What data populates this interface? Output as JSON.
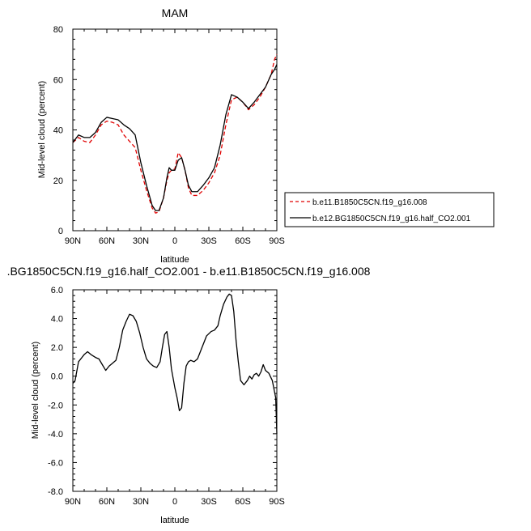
{
  "chart_data": [
    {
      "type": "line",
      "title": "MAM",
      "xlabel": "latitude",
      "ylabel": "Mid-level cloud (percent)",
      "xlim": [
        -90,
        90
      ],
      "ylim": [
        0,
        80
      ],
      "x_tick_values": [
        -90,
        -60,
        -30,
        0,
        30,
        60,
        90
      ],
      "x_tick_labels": [
        "90N",
        "60N",
        "30N",
        "0",
        "30S",
        "60S",
        "90S"
      ],
      "y_tick_values": [
        0,
        20,
        40,
        60,
        80
      ],
      "y_tick_labels": [
        "0",
        "20",
        "40",
        "60",
        "80"
      ],
      "legend_position": "right",
      "grid": false,
      "series": [
        {
          "name": "b.e11.B1850C5CN.f19_g16.008",
          "color": "#e00000",
          "dash": "dashed",
          "x": [
            -90,
            -85,
            -80,
            -75,
            -70,
            -65,
            -60,
            -55,
            -50,
            -45,
            -40,
            -35,
            -30,
            -25,
            -20,
            -17,
            -14,
            -10,
            -7,
            -5,
            -3,
            0,
            3,
            6,
            9,
            12,
            15,
            20,
            25,
            30,
            35,
            40,
            45,
            50,
            55,
            60,
            65,
            70,
            75,
            80,
            85,
            88,
            90
          ],
          "y": [
            35,
            37,
            35.5,
            35,
            38,
            42,
            43.5,
            43,
            42,
            38,
            35.5,
            33,
            24,
            16,
            9,
            7,
            7.5,
            13,
            20,
            23,
            24,
            24.5,
            31,
            29,
            24,
            17,
            14,
            14,
            16,
            19,
            23,
            30,
            42,
            52,
            53,
            51,
            48,
            50,
            53,
            57,
            62,
            68,
            70
          ]
        },
        {
          "name": "b.e12.BG1850C5CN.f19_g16.half_CO2.001",
          "color": "#000000",
          "dash": "solid",
          "x": [
            -90,
            -85,
            -80,
            -75,
            -70,
            -65,
            -60,
            -55,
            -50,
            -45,
            -40,
            -35,
            -30,
            -25,
            -20,
            -17,
            -14,
            -10,
            -7,
            -5,
            -3,
            0,
            3,
            6,
            9,
            12,
            15,
            20,
            25,
            30,
            35,
            40,
            45,
            50,
            55,
            60,
            65,
            70,
            75,
            80,
            85,
            88,
            90
          ],
          "y": [
            35,
            38,
            37,
            37,
            39,
            43,
            45,
            44.5,
            44,
            42,
            40.5,
            38,
            27,
            18,
            10,
            8,
            8,
            13,
            21,
            25,
            24,
            24,
            28,
            29,
            24,
            18,
            15.5,
            15.5,
            18,
            21,
            25,
            34,
            46,
            54,
            53,
            51,
            48.5,
            51,
            54,
            57,
            62,
            64,
            66
          ]
        }
      ]
    },
    {
      "type": "line",
      "title": ".BG1850C5CN.f19_g16.half_CO2.001 - b.e11.B1850C5CN.f19_g16.008",
      "xlabel": "latitude",
      "ylabel": "Mid-level cloud (percent)",
      "xlim": [
        -90,
        90
      ],
      "ylim": [
        -8,
        6
      ],
      "x_tick_values": [
        -90,
        -60,
        -30,
        0,
        30,
        60,
        90
      ],
      "x_tick_labels": [
        "90N",
        "60N",
        "30N",
        "0",
        "30S",
        "60S",
        "90S"
      ],
      "y_tick_values": [
        -8,
        -6,
        -4,
        -2,
        0,
        2,
        4,
        6
      ],
      "y_tick_labels": [
        "-8.0",
        "-6.0",
        "-4.0",
        "-2.0",
        "0.0",
        "2.0",
        "4.0",
        "6.0"
      ],
      "grid": false,
      "series": [
        {
          "color": "#000000",
          "dash": "solid",
          "x": [
            -90,
            -88,
            -85,
            -82,
            -80,
            -77,
            -74,
            -70,
            -67,
            -64,
            -61,
            -58,
            -55,
            -52,
            -49,
            -46,
            -43,
            -40,
            -37,
            -34,
            -31,
            -28,
            -25,
            -22,
            -19,
            -16,
            -13,
            -11,
            -9,
            -7,
            -5,
            -3,
            0,
            2,
            4,
            6,
            8,
            10,
            12,
            14,
            17,
            20,
            24,
            28,
            32,
            35,
            38,
            40,
            43,
            46,
            48,
            50,
            52,
            54,
            56,
            58,
            61,
            64,
            66,
            68,
            70,
            72,
            74,
            76,
            78,
            80,
            83,
            86,
            89,
            90
          ],
          "y": [
            -0.5,
            -0.3,
            1.0,
            1.3,
            1.5,
            1.7,
            1.5,
            1.3,
            1.2,
            0.8,
            0.4,
            0.7,
            0.9,
            1.1,
            2.0,
            3.2,
            3.8,
            4.3,
            4.2,
            3.8,
            3.0,
            2.0,
            1.2,
            0.9,
            0.7,
            0.6,
            1.0,
            2.0,
            2.9,
            3.1,
            2.0,
            0.5,
            -0.8,
            -1.5,
            -2.4,
            -2.2,
            -0.5,
            0.7,
            1.0,
            1.1,
            1.0,
            1.2,
            2.0,
            2.8,
            3.1,
            3.2,
            3.5,
            4.2,
            5.0,
            5.5,
            5.7,
            5.6,
            4.5,
            2.5,
            1.0,
            -0.3,
            -0.6,
            -0.3,
            0.0,
            -0.2,
            0.1,
            0.2,
            0.0,
            0.3,
            0.8,
            0.4,
            0.2,
            -0.3,
            -1.5,
            -4.0
          ]
        }
      ]
    }
  ]
}
